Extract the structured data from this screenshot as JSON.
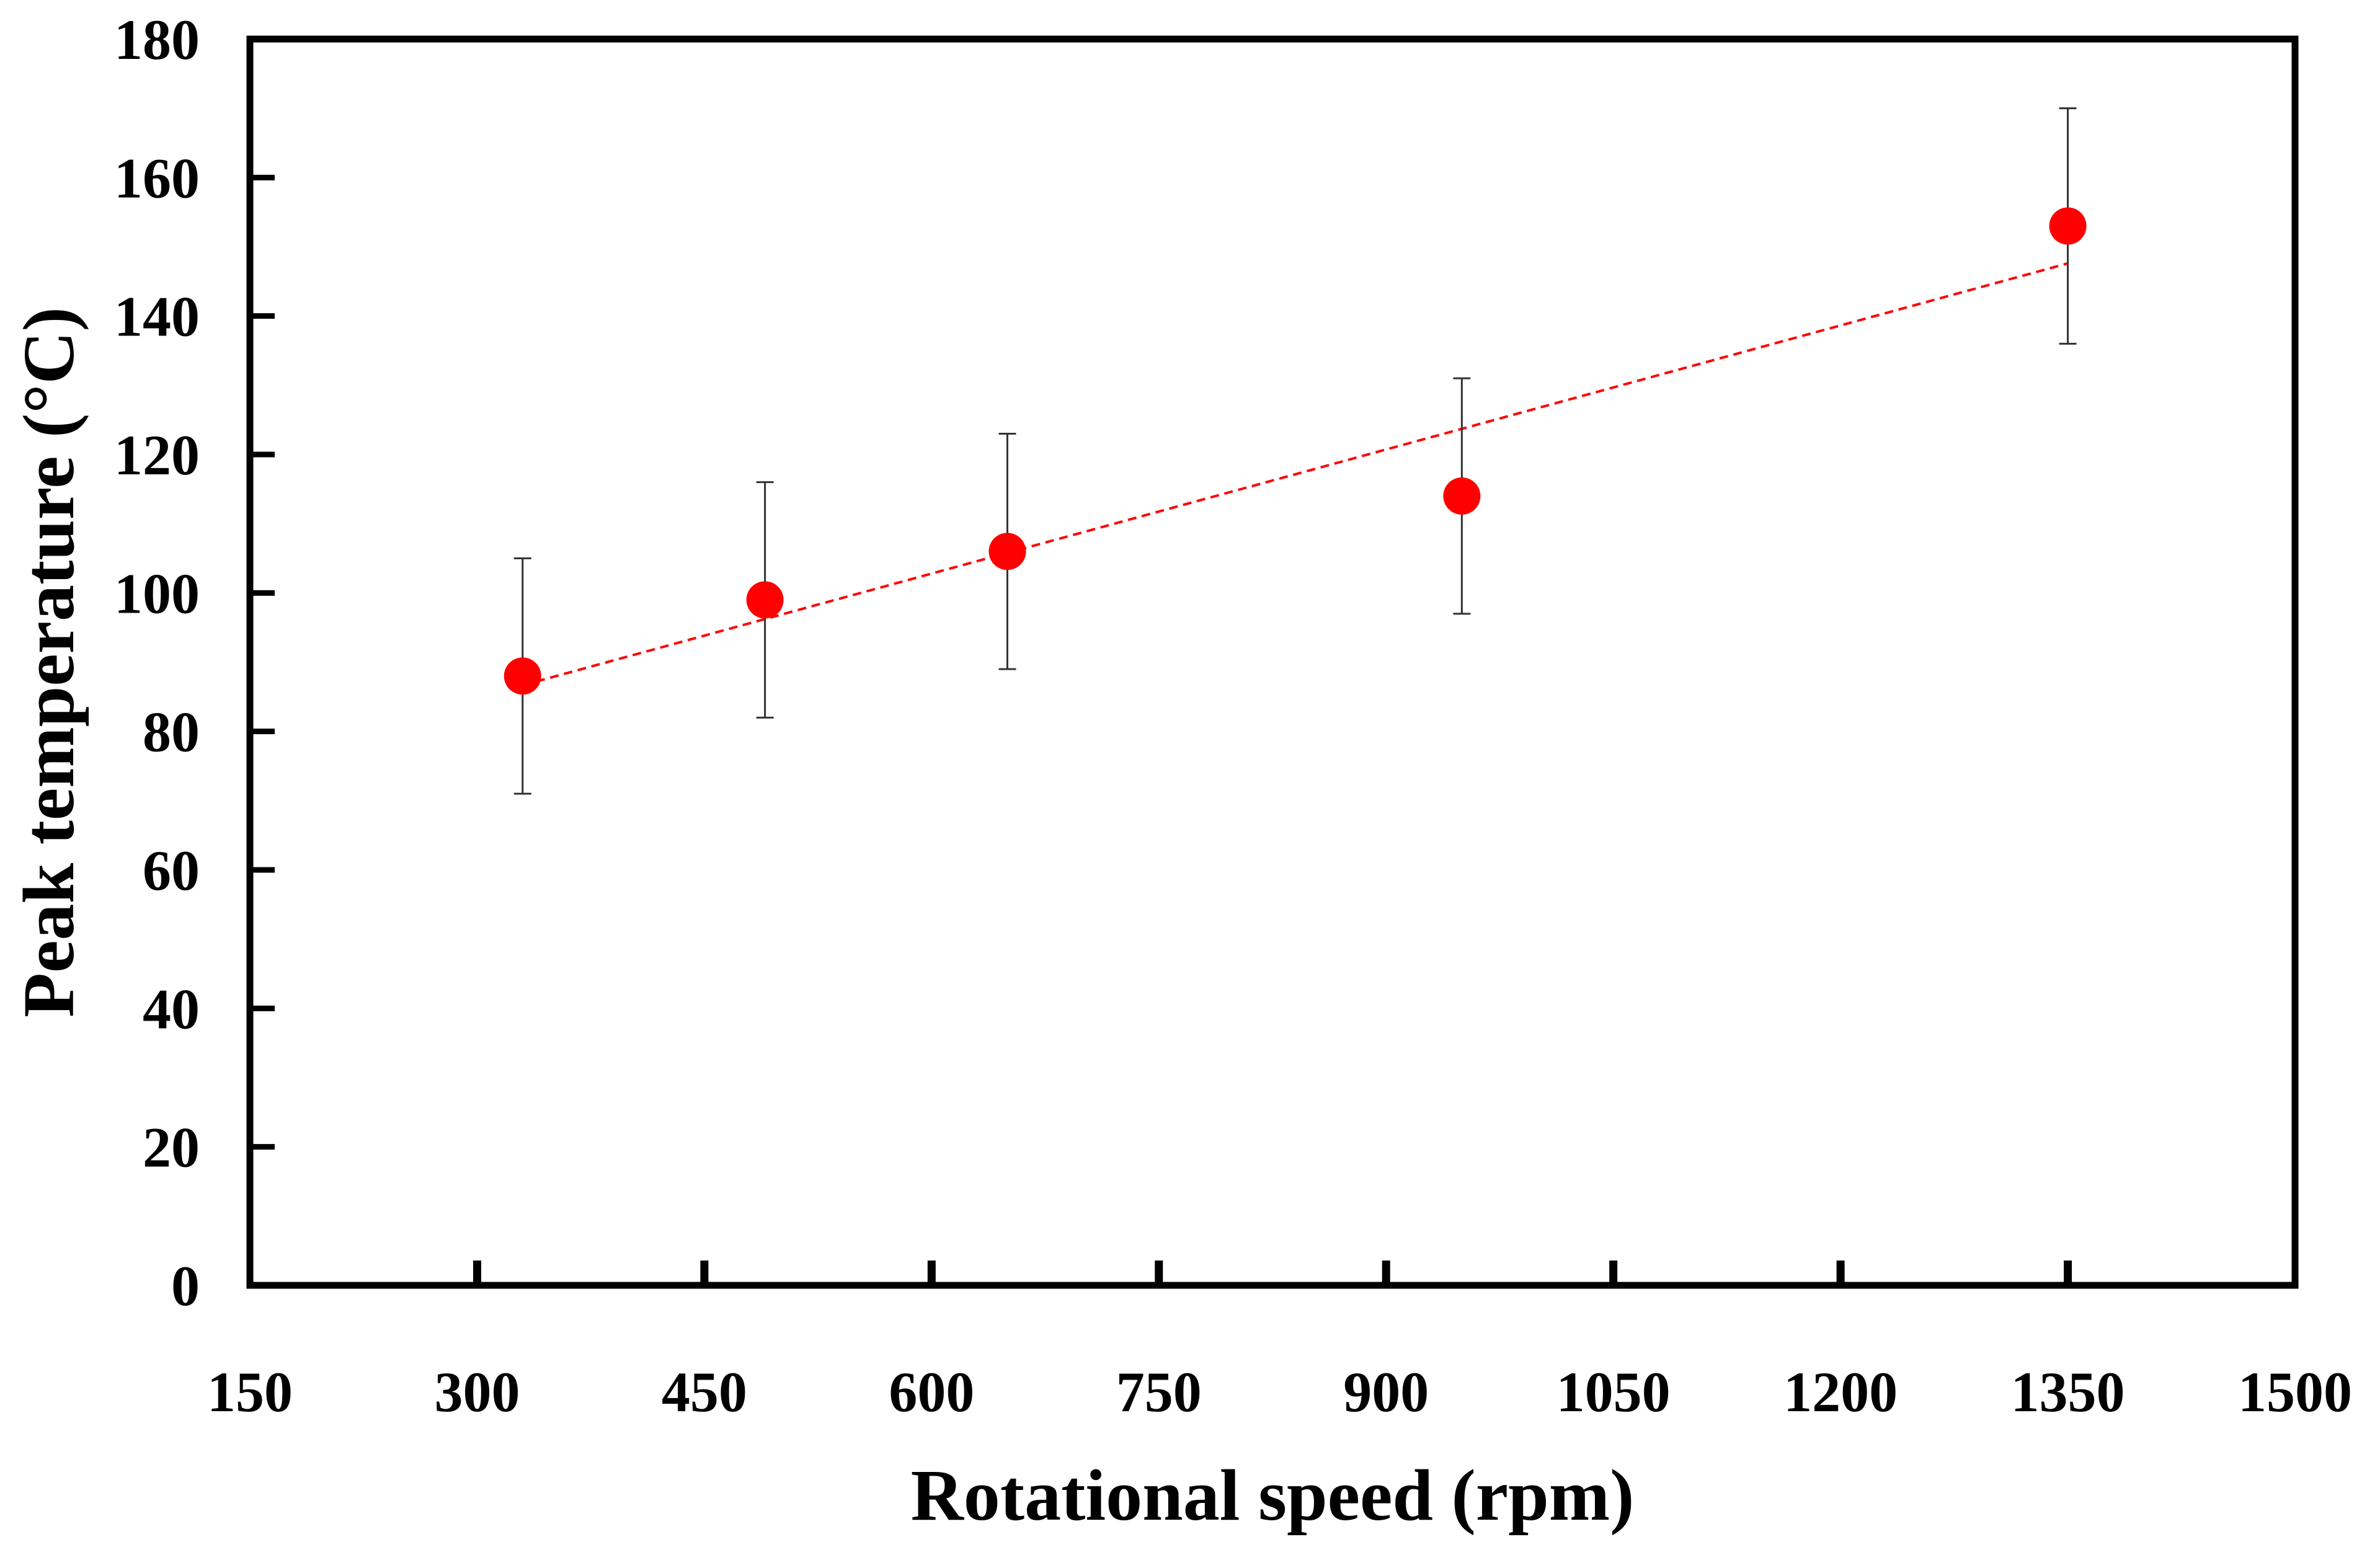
{
  "chart_data": {
    "type": "scatter",
    "title": "",
    "xlabel": "Rotational speed (rpm)",
    "ylabel": "Peak temperature  (°C)",
    "xlim": [
      150,
      1500
    ],
    "ylim": [
      0,
      180
    ],
    "x_ticks": [
      "150",
      "300",
      "450",
      "600",
      "750",
      "900",
      "1050",
      "1200",
      "1350",
      "1500"
    ],
    "y_ticks": [
      "0",
      "20",
      "40",
      "60",
      "80",
      "100",
      "120",
      "140",
      "160",
      "180"
    ],
    "grid": false,
    "legend": "none",
    "series": [
      {
        "name": "Peak temperature",
        "marker_color": "#ff0000",
        "points": [
          {
            "x": 330,
            "y": 88,
            "error": 17
          },
          {
            "x": 490,
            "y": 99,
            "error": 17
          },
          {
            "x": 650,
            "y": 106,
            "error": 17
          },
          {
            "x": 950,
            "y": 114,
            "error": 17
          },
          {
            "x": 1350,
            "y": 153,
            "error": 17
          }
        ]
      }
    ],
    "trendline": {
      "type": "linear",
      "style": "dashed",
      "color": "#ff0000",
      "x_range": [
        330,
        1350
      ]
    }
  }
}
